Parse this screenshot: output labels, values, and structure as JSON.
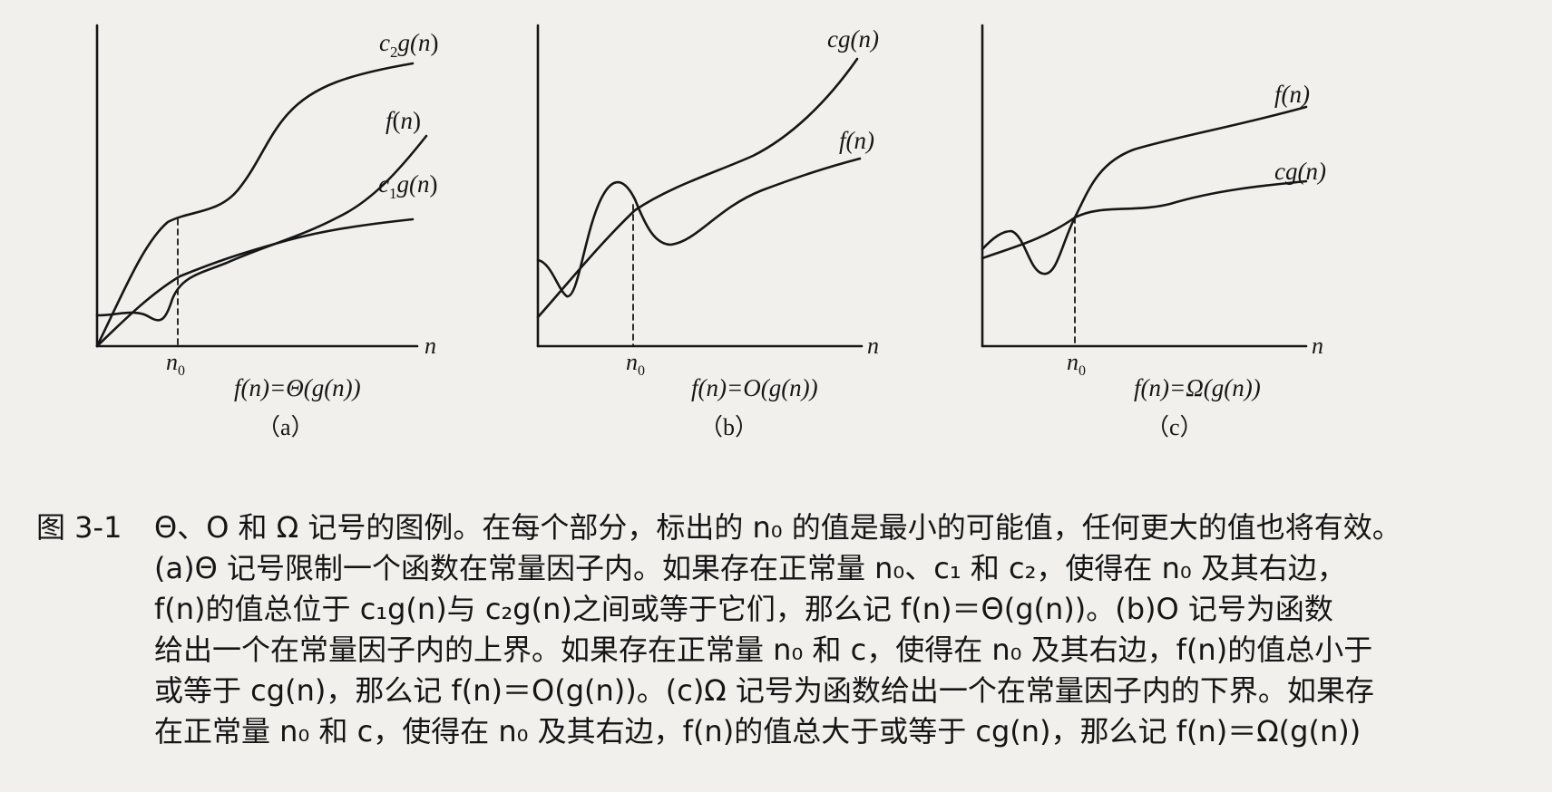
{
  "panels": [
    {
      "id": "a",
      "axis_label_x": "n",
      "n0_label": "n",
      "n0_sub": "0",
      "curve_labels": {
        "upper_coef": "c",
        "upper_sub": "2",
        "upper_fn": "g(",
        "upper_var": "n",
        "upper_close": ")",
        "f_fn": "f",
        "f_open": "(",
        "f_var": "n",
        "f_close": ")",
        "lower_coef": "c",
        "lower_sub": "1",
        "lower_fn": "g(",
        "lower_var": "n",
        "lower_close": ")"
      },
      "formula": "f(n)=Θ(g(n))",
      "panel_label": "（a）"
    },
    {
      "id": "b",
      "axis_label_x": "n",
      "n0_label": "n",
      "n0_sub": "0",
      "curve_labels": {
        "upper": "cg(n)",
        "f": "f(n)"
      },
      "formula": "f(n)=O(g(n))",
      "panel_label": "（b）"
    },
    {
      "id": "c",
      "axis_label_x": "n",
      "n0_label": "n",
      "n0_sub": "0",
      "curve_labels": {
        "f": "f(n)",
        "lower": "cg(n)"
      },
      "formula": "f(n)=Ω(g(n))",
      "panel_label": "（c）"
    }
  ],
  "caption": {
    "number": "图 3-1",
    "lines": [
      "Θ、O 和 Ω 记号的图例。在每个部分，标出的 n₀ 的值是最小的可能值，任何更大的值也将有效。",
      "(a)Θ 记号限制一个函数在常量因子内。如果存在正常量 n₀、c₁ 和 c₂，使得在 n₀ 及其右边，",
      "f(n)的值总位于 c₁g(n)与 c₂g(n)之间或等于它们，那么记 f(n)＝Θ(g(n))。(b)O 记号为函数",
      "给出一个在常量因子内的上界。如果存在正常量 n₀ 和 c，使得在 n₀ 及其右边，f(n)的值总小于",
      "或等于 cg(n)，那么记 f(n)＝O(g(n))。(c)Ω 记号为函数给出一个在常量因子内的下界。如果存",
      "在正常量 n₀ 和 c，使得在 n₀ 及其右边，f(n)的值总大于或等于 cg(n)，那么记 f(n)＝Ω(g(n))"
    ]
  }
}
